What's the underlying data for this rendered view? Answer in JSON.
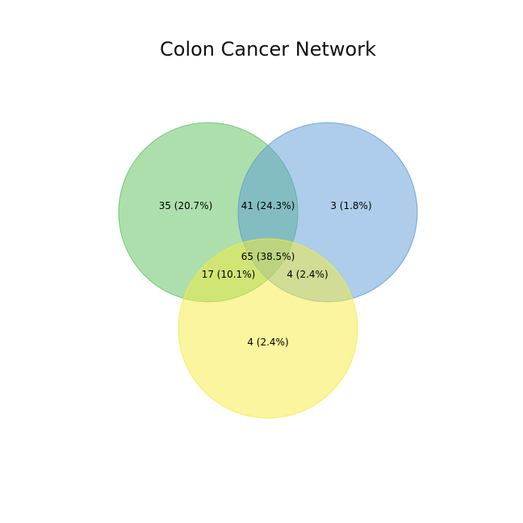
{
  "title": "Colon Cancer Network",
  "colors": {
    "set_a": "#7fcd7f",
    "set_b": "#6fa8dc",
    "set_c": "#f5ec5a"
  },
  "regions": {
    "a_only": "35 (20.7%)",
    "ab": "41 (24.3%)",
    "b_only": "3 (1.8%)",
    "abc": "65 (38.5%)",
    "ac": "17 (10.1%)",
    "bc": "4 (2.4%)",
    "c_only": "4 (2.4%)"
  }
}
